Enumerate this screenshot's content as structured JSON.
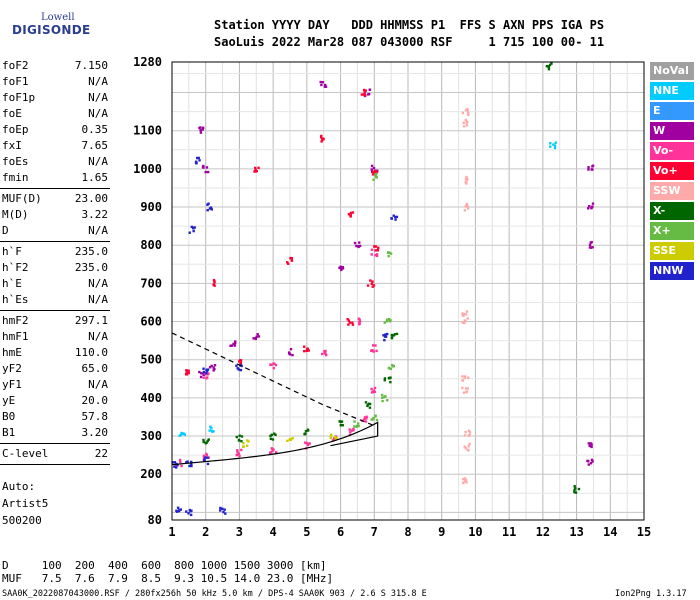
{
  "logo": {
    "top": "Lowell",
    "main": "DIGISONDE"
  },
  "header": {
    "line1": "Station YYYY DAY   DDD HHMMSS P1  FFS S AXN PPS IGA PS",
    "line2": "SaoLuis 2022 Mar28 087 043000 RSF     1 715 100 00- 11"
  },
  "params": [
    {
      "name": "foF2",
      "value": "7.150"
    },
    {
      "name": "foF1",
      "value": "N/A"
    },
    {
      "name": "foF1p",
      "value": "N/A"
    },
    {
      "name": "foE",
      "value": "N/A"
    },
    {
      "name": "foEp",
      "value": "0.35"
    },
    {
      "name": "fxI",
      "value": "7.65"
    },
    {
      "name": "foEs",
      "value": "N/A"
    },
    {
      "name": "fmin",
      "value": "1.65"
    },
    {
      "name": "MUF(D)",
      "value": "23.00"
    },
    {
      "name": "M(D)",
      "value": "3.22"
    },
    {
      "name": "D",
      "value": "N/A"
    },
    {
      "name": "h`F",
      "value": "235.0"
    },
    {
      "name": "h`F2",
      "value": "235.0"
    },
    {
      "name": "h`E",
      "value": "N/A"
    },
    {
      "name": "h`Es",
      "value": "N/A"
    },
    {
      "name": "hmF2",
      "value": "297.1"
    },
    {
      "name": "hmF1",
      "value": "N/A"
    },
    {
      "name": "hmE",
      "value": "110.0"
    },
    {
      "name": "yF2",
      "value": "65.0"
    },
    {
      "name": "yF1",
      "value": "N/A"
    },
    {
      "name": "yE",
      "value": "20.0"
    },
    {
      "name": "B0",
      "value": "57.8"
    },
    {
      "name": "B1",
      "value": "3.20"
    },
    {
      "name": "C-level",
      "value": "22"
    }
  ],
  "auto": [
    "Auto:",
    "Artist5",
    "500200"
  ],
  "legend": [
    {
      "label": "NoVal",
      "color": "#a0a0a0"
    },
    {
      "label": "NNE",
      "color": "#00ccff"
    },
    {
      "label": "E",
      "color": "#3399ff"
    },
    {
      "label": "W",
      "color": "#a000a0"
    },
    {
      "label": "Vo-",
      "color": "#ff3399"
    },
    {
      "label": "Vo+",
      "color": "#ff0033"
    },
    {
      "label": "SSW",
      "color": "#ffaaaa"
    },
    {
      "label": "X-",
      "color": "#006600"
    },
    {
      "label": "X+",
      "color": "#66bb44"
    },
    {
      "label": "SSE",
      "color": "#cccc00"
    },
    {
      "label": "NNW",
      "color": "#2222cc"
    }
  ],
  "footer": {
    "d_line": "D     100  200  400  600  800 1000 1500 3000 [km]",
    "muf_line": "MUF   7.5  7.6  7.9  8.5  9.3 10.5 14.0 23.0 [MHz]",
    "file_line": "SAA0K_2022087043000.RSF / 280fx256h 50 kHz 5.0 km / DPS-4 SAA0K 903 / 2.6 S 315.8 E",
    "version": "Ion2Png 1.3.17"
  },
  "chart_data": {
    "type": "scatter",
    "xlim": [
      1,
      15
    ],
    "ylim": [
      80,
      1280
    ],
    "xticks": [
      1,
      2,
      3,
      4,
      5,
      6,
      7,
      8,
      9,
      10,
      11,
      12,
      13,
      14,
      15
    ],
    "yticks": [
      80,
      200,
      300,
      400,
      500,
      600,
      700,
      800,
      900,
      1000,
      1100,
      1280
    ],
    "grid": true,
    "legend_position": "right",
    "series": [
      {
        "name": "W",
        "points": [
          [
            1.9,
            460
          ],
          [
            2.2,
            480
          ],
          [
            2.8,
            540
          ],
          [
            3.5,
            560
          ],
          [
            4.5,
            520
          ],
          [
            6.0,
            740
          ],
          [
            6.5,
            800
          ],
          [
            7.0,
            1000
          ],
          [
            6.8,
            1200
          ],
          [
            5.5,
            1220
          ],
          [
            1.9,
            1100
          ],
          [
            2.0,
            1000
          ],
          [
            13.4,
            1000
          ],
          [
            13.4,
            900
          ],
          [
            13.4,
            800
          ],
          [
            13.4,
            280
          ],
          [
            13.4,
            230
          ]
        ]
      },
      {
        "name": "Vo-",
        "points": [
          [
            1.2,
            230
          ],
          [
            2.0,
            245
          ],
          [
            3.0,
            255
          ],
          [
            4.0,
            265
          ],
          [
            5.0,
            275
          ],
          [
            5.8,
            290
          ],
          [
            6.3,
            310
          ],
          [
            6.7,
            345
          ],
          [
            6.95,
            420
          ],
          [
            7.0,
            530
          ],
          [
            2.0,
            460
          ],
          [
            4.0,
            485
          ],
          [
            5.5,
            520
          ],
          [
            6.5,
            600
          ],
          [
            7.0,
            780
          ]
        ]
      },
      {
        "name": "Vo+",
        "points": [
          [
            1.5,
            470
          ],
          [
            3.0,
            490
          ],
          [
            5.0,
            530
          ],
          [
            6.3,
            600
          ],
          [
            6.9,
            700
          ],
          [
            7.05,
            790
          ],
          [
            2.2,
            700
          ],
          [
            4.5,
            760
          ],
          [
            6.3,
            880
          ],
          [
            7.0,
            990
          ],
          [
            3.5,
            1000
          ],
          [
            5.5,
            1080
          ],
          [
            6.7,
            1200
          ]
        ]
      },
      {
        "name": "SSW",
        "points": [
          [
            9.7,
            1150
          ],
          [
            9.7,
            1120
          ],
          [
            9.7,
            970
          ],
          [
            9.7,
            900
          ],
          [
            9.7,
            620
          ],
          [
            9.7,
            600
          ],
          [
            9.7,
            450
          ],
          [
            9.7,
            420
          ],
          [
            9.75,
            310
          ],
          [
            9.75,
            270
          ],
          [
            9.7,
            180
          ]
        ]
      },
      {
        "name": "X-",
        "points": [
          [
            2.0,
            290
          ],
          [
            3.0,
            295
          ],
          [
            4.0,
            300
          ],
          [
            5.0,
            310
          ],
          [
            6.0,
            330
          ],
          [
            6.8,
            380
          ],
          [
            7.4,
            450
          ],
          [
            7.6,
            560
          ],
          [
            12.2,
            1270
          ],
          [
            13.0,
            160
          ]
        ]
      },
      {
        "name": "X+",
        "points": [
          [
            6.5,
            330
          ],
          [
            7.0,
            350
          ],
          [
            7.3,
            400
          ],
          [
            7.5,
            480
          ],
          [
            7.4,
            600
          ],
          [
            7.5,
            780
          ],
          [
            7.0,
            980
          ]
        ]
      },
      {
        "name": "SSE",
        "points": [
          [
            3.2,
            280
          ],
          [
            4.5,
            290
          ],
          [
            5.8,
            300
          ]
        ]
      },
      {
        "name": "NNW",
        "points": [
          [
            1.1,
            225
          ],
          [
            1.5,
            230
          ],
          [
            2.0,
            235
          ],
          [
            1.2,
            110
          ],
          [
            1.5,
            100
          ],
          [
            2.5,
            105
          ],
          [
            1.6,
            840
          ],
          [
            2.0,
            470
          ],
          [
            3.0,
            480
          ],
          [
            1.8,
            1020
          ],
          [
            2.1,
            900
          ],
          [
            7.6,
            870
          ],
          [
            7.3,
            560
          ]
        ]
      },
      {
        "name": "NNE",
        "points": [
          [
            1.3,
            300
          ],
          [
            2.2,
            320
          ],
          [
            12.3,
            1060
          ]
        ]
      }
    ],
    "curves": [
      {
        "name": "profile",
        "style": "solid"
      },
      {
        "name": "model",
        "style": "dashed"
      }
    ]
  }
}
